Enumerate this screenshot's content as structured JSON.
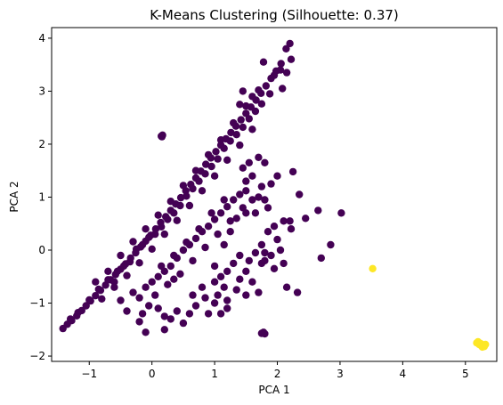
{
  "chart_data": {
    "type": "scatter",
    "title": "K-Means Clustering (Silhouette: 0.37)",
    "xlabel": "PCA 1",
    "ylabel": "PCA 2",
    "xlim": [
      -1.6,
      5.5
    ],
    "ylim": [
      -2.1,
      4.2
    ],
    "xticks": [
      -1,
      0,
      1,
      2,
      3,
      4,
      5
    ],
    "yticks": [
      -2,
      -1,
      0,
      1,
      2,
      3,
      4
    ],
    "grid": false,
    "legend": "none",
    "series": [
      {
        "color": "#440154",
        "points": [
          [
            -1.42,
            -1.48
          ],
          [
            -1.35,
            -1.4
          ],
          [
            -1.28,
            -1.33
          ],
          [
            -1.2,
            -1.24
          ],
          [
            -1.12,
            -1.14
          ],
          [
            -1.05,
            -1.05
          ],
          [
            -0.98,
            -0.96
          ],
          [
            -0.9,
            -0.86
          ],
          [
            -0.82,
            -0.76
          ],
          [
            -0.74,
            -0.66
          ],
          [
            -0.66,
            -0.56
          ],
          [
            -0.58,
            -0.46
          ],
          [
            -0.5,
            -0.36
          ],
          [
            -0.42,
            -0.26
          ],
          [
            -0.34,
            -0.15
          ],
          [
            -0.26,
            -0.05
          ],
          [
            -0.18,
            0.06
          ],
          [
            -0.1,
            0.17
          ],
          [
            -0.02,
            0.28
          ],
          [
            0.06,
            0.4
          ],
          [
            0.14,
            0.52
          ],
          [
            0.22,
            0.63
          ],
          [
            0.3,
            0.75
          ],
          [
            0.38,
            0.87
          ],
          [
            0.46,
            0.99
          ],
          [
            0.54,
            1.12
          ],
          [
            0.62,
            1.24
          ],
          [
            0.7,
            1.36
          ],
          [
            0.78,
            1.49
          ],
          [
            0.86,
            1.62
          ],
          [
            0.94,
            1.74
          ],
          [
            1.02,
            1.86
          ],
          [
            1.1,
            1.98
          ],
          [
            1.18,
            2.1
          ],
          [
            1.26,
            2.22
          ],
          [
            1.34,
            2.34
          ],
          [
            1.42,
            2.46
          ],
          [
            1.5,
            2.58
          ],
          [
            1.58,
            2.7
          ],
          [
            1.66,
            2.83
          ],
          [
            1.74,
            2.96
          ],
          [
            1.82,
            3.1
          ],
          [
            1.9,
            3.24
          ],
          [
            1.98,
            3.38
          ],
          [
            2.06,
            3.52
          ],
          [
            -1.3,
            -1.3
          ],
          [
            -1.18,
            -1.18
          ],
          [
            -1.0,
            -0.94
          ],
          [
            -0.85,
            -0.74
          ],
          [
            -0.7,
            -0.56
          ],
          [
            -0.6,
            -0.6
          ],
          [
            -0.55,
            -0.4
          ],
          [
            -0.45,
            -0.3
          ],
          [
            -0.35,
            -0.22
          ],
          [
            -0.25,
            0.02
          ],
          [
            -0.15,
            0.1
          ],
          [
            -0.05,
            0.24
          ],
          [
            0.05,
            0.3
          ],
          [
            0.15,
            0.44
          ],
          [
            0.25,
            0.58
          ],
          [
            0.35,
            0.7
          ],
          [
            0.45,
            0.84
          ],
          [
            0.55,
            1.02
          ],
          [
            0.65,
            1.16
          ],
          [
            0.75,
            1.3
          ],
          [
            0.85,
            1.44
          ],
          [
            0.95,
            1.58
          ],
          [
            1.05,
            1.72
          ],
          [
            1.15,
            1.92
          ],
          [
            1.25,
            2.06
          ],
          [
            1.35,
            2.18
          ],
          [
            1.45,
            2.32
          ],
          [
            1.55,
            2.48
          ],
          [
            1.65,
            2.62
          ],
          [
            1.75,
            2.76
          ],
          [
            -0.9,
            -0.6
          ],
          [
            -0.7,
            -0.4
          ],
          [
            -0.5,
            -0.1
          ],
          [
            -0.3,
            0.16
          ],
          [
            -0.1,
            0.4
          ],
          [
            0.1,
            0.66
          ],
          [
            0.3,
            0.92
          ],
          [
            0.5,
            1.22
          ],
          [
            0.7,
            1.5
          ],
          [
            0.9,
            1.8
          ],
          [
            1.1,
            2.08
          ],
          [
            1.3,
            2.4
          ],
          [
            1.5,
            2.72
          ],
          [
            1.7,
            3.02
          ],
          [
            -0.8,
            -0.92
          ],
          [
            -0.6,
            -0.7
          ],
          [
            -0.4,
            -0.48
          ],
          [
            -0.2,
            -0.24
          ],
          [
            0.0,
            0.02
          ],
          [
            0.2,
            0.3
          ],
          [
            0.4,
            0.56
          ],
          [
            0.6,
            0.84
          ],
          [
            0.8,
            1.12
          ],
          [
            1.0,
            1.4
          ],
          [
            1.2,
            1.7
          ],
          [
            1.4,
            1.98
          ],
          [
            1.6,
            2.28
          ],
          [
            1.78,
            3.55
          ],
          [
            2.2,
            3.9
          ],
          [
            2.14,
            3.8
          ],
          [
            2.05,
            3.4
          ],
          [
            1.95,
            3.3
          ],
          [
            2.15,
            3.35
          ],
          [
            2.22,
            3.6
          ],
          [
            2.08,
            3.05
          ],
          [
            1.88,
            2.95
          ],
          [
            1.6,
            2.9
          ],
          [
            1.45,
            3.0
          ],
          [
            1.4,
            2.75
          ],
          [
            0.15,
            2.15
          ],
          [
            0.17,
            2.17
          ],
          [
            0.16,
            2.14
          ],
          [
            -0.5,
            -0.95
          ],
          [
            -0.3,
            -0.8
          ],
          [
            -0.2,
            -0.9
          ],
          [
            -0.1,
            -0.7
          ],
          [
            0.0,
            -0.6
          ],
          [
            0.1,
            -0.5
          ],
          [
            0.2,
            -0.4
          ],
          [
            0.3,
            -0.3
          ],
          [
            0.4,
            -0.15
          ],
          [
            0.5,
            0.0
          ],
          [
            0.6,
            0.1
          ],
          [
            0.7,
            0.22
          ],
          [
            0.8,
            0.35
          ],
          [
            0.9,
            0.45
          ],
          [
            1.0,
            0.58
          ],
          [
            1.1,
            0.7
          ],
          [
            1.2,
            0.82
          ],
          [
            1.3,
            0.95
          ],
          [
            1.4,
            1.05
          ],
          [
            1.5,
            1.12
          ],
          [
            0.05,
            -0.85
          ],
          [
            0.25,
            -0.65
          ],
          [
            0.45,
            -0.45
          ],
          [
            0.65,
            -0.2
          ],
          [
            0.85,
            0.05
          ],
          [
            1.05,
            0.3
          ],
          [
            1.25,
            0.55
          ],
          [
            1.45,
            0.8
          ],
          [
            0.35,
            -0.1
          ],
          [
            0.55,
            0.15
          ],
          [
            0.75,
            0.4
          ],
          [
            0.95,
            0.7
          ],
          [
            1.15,
            0.95
          ],
          [
            0.15,
            -0.3
          ],
          [
            0.35,
            -0.55
          ],
          [
            -0.15,
            -1.2
          ],
          [
            -0.05,
            -1.05
          ],
          [
            0.1,
            -1.1
          ],
          [
            0.2,
            -1.25
          ],
          [
            0.3,
            -1.3
          ],
          [
            0.4,
            -1.15
          ],
          [
            0.6,
            -1.2
          ],
          [
            0.7,
            -1.05
          ],
          [
            0.85,
            -0.9
          ],
          [
            0.9,
            -1.2
          ],
          [
            -0.4,
            -1.15
          ],
          [
            -0.2,
            -1.35
          ],
          [
            -0.1,
            -1.55
          ],
          [
            0.2,
            -1.5
          ],
          [
            0.5,
            -1.38
          ],
          [
            0.65,
            -0.85
          ],
          [
            0.8,
            -0.7
          ],
          [
            1.0,
            -0.6
          ],
          [
            1.1,
            -0.5
          ],
          [
            1.2,
            -0.4
          ],
          [
            1.3,
            -0.25
          ],
          [
            1.4,
            -0.1
          ],
          [
            1.0,
            -0.3
          ],
          [
            1.15,
            0.1
          ],
          [
            1.25,
            0.35
          ],
          [
            1.35,
            0.6
          ],
          [
            1.5,
            0.7
          ],
          [
            1.6,
            0.95
          ],
          [
            1.7,
            1.0
          ],
          [
            1.8,
            0.95
          ],
          [
            1.75,
            1.2
          ],
          [
            1.9,
            1.25
          ],
          [
            2.0,
            1.4
          ],
          [
            1.6,
            1.4
          ],
          [
            1.5,
            1.3
          ],
          [
            1.45,
            1.55
          ],
          [
            1.55,
            1.65
          ],
          [
            1.7,
            1.75
          ],
          [
            1.8,
            1.65
          ],
          [
            1.0,
            -1.0
          ],
          [
            1.05,
            -0.85
          ],
          [
            1.15,
            -0.7
          ],
          [
            1.2,
            -0.95
          ],
          [
            1.35,
            -0.75
          ],
          [
            1.4,
            -0.55
          ],
          [
            1.5,
            -0.4
          ],
          [
            1.55,
            -0.2
          ],
          [
            1.65,
            -0.05
          ],
          [
            1.75,
            0.1
          ],
          [
            1.85,
            0.35
          ],
          [
            1.95,
            0.45
          ],
          [
            2.1,
            0.55
          ],
          [
            2.2,
            0.55
          ],
          [
            2.0,
            0.2
          ],
          [
            1.8,
            -0.2
          ],
          [
            1.9,
            -0.1
          ],
          [
            2.05,
            0.0
          ],
          [
            1.6,
            -0.6
          ],
          [
            1.5,
            -0.85
          ],
          [
            1.75,
            -0.25
          ],
          [
            1.8,
            -0.05
          ],
          [
            1.1,
            -1.2
          ],
          [
            1.2,
            -1.1
          ],
          [
            1.75,
            -1.57
          ],
          [
            1.8,
            -1.58
          ],
          [
            1.78,
            -1.55
          ],
          [
            2.25,
            1.48
          ],
          [
            2.35,
            1.05
          ],
          [
            2.22,
            0.4
          ],
          [
            2.32,
            -0.8
          ],
          [
            1.7,
            -0.8
          ],
          [
            2.7,
            -0.15
          ],
          [
            2.85,
            0.1
          ],
          [
            3.02,
            0.7
          ],
          [
            2.65,
            0.75
          ],
          [
            2.45,
            0.6
          ],
          [
            1.95,
            -0.35
          ],
          [
            2.1,
            -0.25
          ],
          [
            2.15,
            -0.7
          ],
          [
            1.65,
            0.7
          ],
          [
            1.85,
            0.8
          ]
        ]
      },
      {
        "color": "#fde725",
        "points": [
          [
            3.52,
            -0.35
          ],
          [
            5.18,
            -1.75
          ],
          [
            5.22,
            -1.78
          ],
          [
            5.25,
            -1.8
          ],
          [
            5.28,
            -1.79
          ],
          [
            5.3,
            -1.82
          ],
          [
            5.2,
            -1.73
          ],
          [
            5.24,
            -1.76
          ],
          [
            5.27,
            -1.83
          ],
          [
            5.32,
            -1.78
          ]
        ]
      }
    ]
  }
}
